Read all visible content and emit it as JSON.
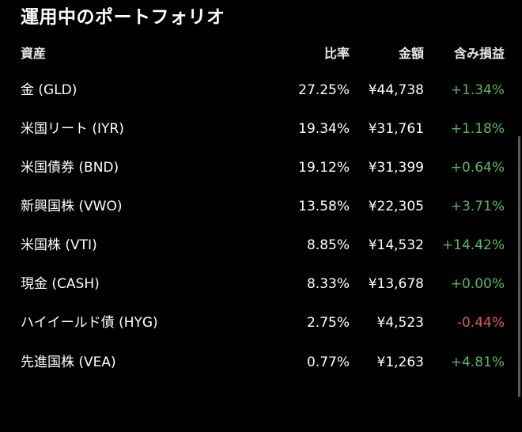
{
  "title": "運用中のポートフォリオ",
  "columns": {
    "asset": "資産",
    "ratio": "比率",
    "amount": "金額",
    "pl": "含み損益"
  },
  "colors": {
    "positive": "#5cb85c",
    "negative": "#e05a5a"
  },
  "holdings": [
    {
      "name": "金 (GLD)",
      "ratio": "27.25%",
      "amount": "¥44,738",
      "pl": "+1.34%",
      "sign": "pos"
    },
    {
      "name": "米国リート (IYR)",
      "ratio": "19.34%",
      "amount": "¥31,761",
      "pl": "+1.18%",
      "sign": "pos"
    },
    {
      "name": "米国債券 (BND)",
      "ratio": "19.12%",
      "amount": "¥31,399",
      "pl": "+0.64%",
      "sign": "pos"
    },
    {
      "name": "新興国株 (VWO)",
      "ratio": "13.58%",
      "amount": "¥22,305",
      "pl": "+3.71%",
      "sign": "pos"
    },
    {
      "name": "米国株 (VTI)",
      "ratio": "8.85%",
      "amount": "¥14,532",
      "pl": "+14.42%",
      "sign": "pos"
    },
    {
      "name": "現金 (CASH)",
      "ratio": "8.33%",
      "amount": "¥13,678",
      "pl": "+0.00%",
      "sign": "pos"
    },
    {
      "name": "ハイイールド債 (HYG)",
      "ratio": "2.75%",
      "amount": "¥4,523",
      "pl": "-0.44%",
      "sign": "neg"
    },
    {
      "name": "先進国株 (VEA)",
      "ratio": "0.77%",
      "amount": "¥1,263",
      "pl": "+4.81%",
      "sign": "pos"
    }
  ]
}
